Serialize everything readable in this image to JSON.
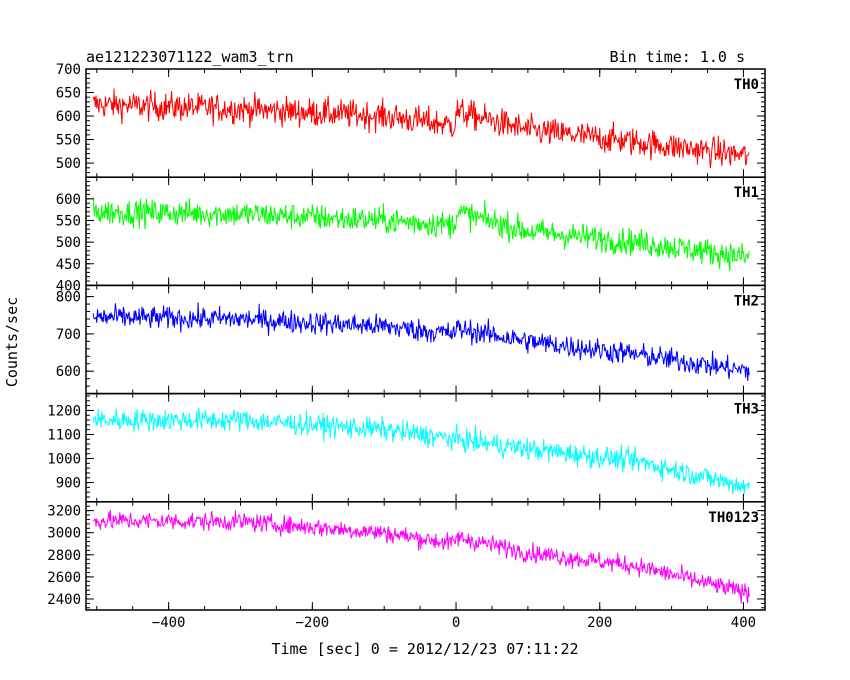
{
  "chart_data": {
    "type": "line",
    "title": "ae121223071122_wam3_trn",
    "subtitle": "Bin time: 1.0 s",
    "xlabel": "Time [sec] 0 = 2012/12/23 07:11:22",
    "ylabel": "Counts/sec",
    "xlim": [
      -515,
      430
    ],
    "x_ticks": [
      -400,
      -200,
      0,
      200,
      400
    ],
    "x_data_range": [
      -505,
      408
    ],
    "panels": [
      {
        "name": "TH0",
        "color": "#ff0000",
        "ylim": [
          470,
          700
        ],
        "y_ticks": [
          500,
          550,
          600,
          650,
          700
        ],
        "trend": [
          {
            "x": -505,
            "y": 625
          },
          {
            "x": -300,
            "y": 615
          },
          {
            "x": -100,
            "y": 600
          },
          {
            "x": -2,
            "y": 580
          },
          {
            "x": 0,
            "y": 610
          },
          {
            "x": 100,
            "y": 570
          },
          {
            "x": 250,
            "y": 545
          },
          {
            "x": 408,
            "y": 515
          }
        ],
        "noise": 22
      },
      {
        "name": "TH1",
        "color": "#00ff00",
        "ylim": [
          400,
          650
        ],
        "y_ticks": [
          400,
          450,
          500,
          550,
          600
        ],
        "trend": [
          {
            "x": -505,
            "y": 570
          },
          {
            "x": -300,
            "y": 565
          },
          {
            "x": -100,
            "y": 550
          },
          {
            "x": -2,
            "y": 540
          },
          {
            "x": 0,
            "y": 570
          },
          {
            "x": 100,
            "y": 525
          },
          {
            "x": 250,
            "y": 500
          },
          {
            "x": 408,
            "y": 465
          }
        ],
        "noise": 22
      },
      {
        "name": "TH2",
        "color": "#0000ff",
        "ylim": [
          540,
          830
        ],
        "y_ticks": [
          600,
          700,
          800
        ],
        "trend": [
          {
            "x": -505,
            "y": 745
          },
          {
            "x": -300,
            "y": 740
          },
          {
            "x": -100,
            "y": 720
          },
          {
            "x": -2,
            "y": 700
          },
          {
            "x": 0,
            "y": 715
          },
          {
            "x": 100,
            "y": 680
          },
          {
            "x": 250,
            "y": 645
          },
          {
            "x": 408,
            "y": 600
          }
        ],
        "noise": 22
      },
      {
        "name": "TH3",
        "color": "#00ffff",
        "ylim": [
          820,
          1270
        ],
        "y_ticks": [
          900,
          1000,
          1100,
          1200
        ],
        "trend": [
          {
            "x": -505,
            "y": 1160
          },
          {
            "x": -300,
            "y": 1160
          },
          {
            "x": -100,
            "y": 1120
          },
          {
            "x": 0,
            "y": 1080
          },
          {
            "x": 100,
            "y": 1040
          },
          {
            "x": 250,
            "y": 990
          },
          {
            "x": 408,
            "y": 880
          }
        ],
        "noise": 33
      },
      {
        "name": "TH0123",
        "color": "#ff00ff",
        "ylim": [
          2300,
          3280
        ],
        "y_ticks": [
          2400,
          2600,
          2800,
          3000,
          3200
        ],
        "trend": [
          {
            "x": -505,
            "y": 3110
          },
          {
            "x": -300,
            "y": 3100
          },
          {
            "x": -100,
            "y": 3000
          },
          {
            "x": -2,
            "y": 2900
          },
          {
            "x": 0,
            "y": 2960
          },
          {
            "x": 100,
            "y": 2820
          },
          {
            "x": 250,
            "y": 2700
          },
          {
            "x": 408,
            "y": 2450
          }
        ],
        "noise": 60
      }
    ]
  }
}
